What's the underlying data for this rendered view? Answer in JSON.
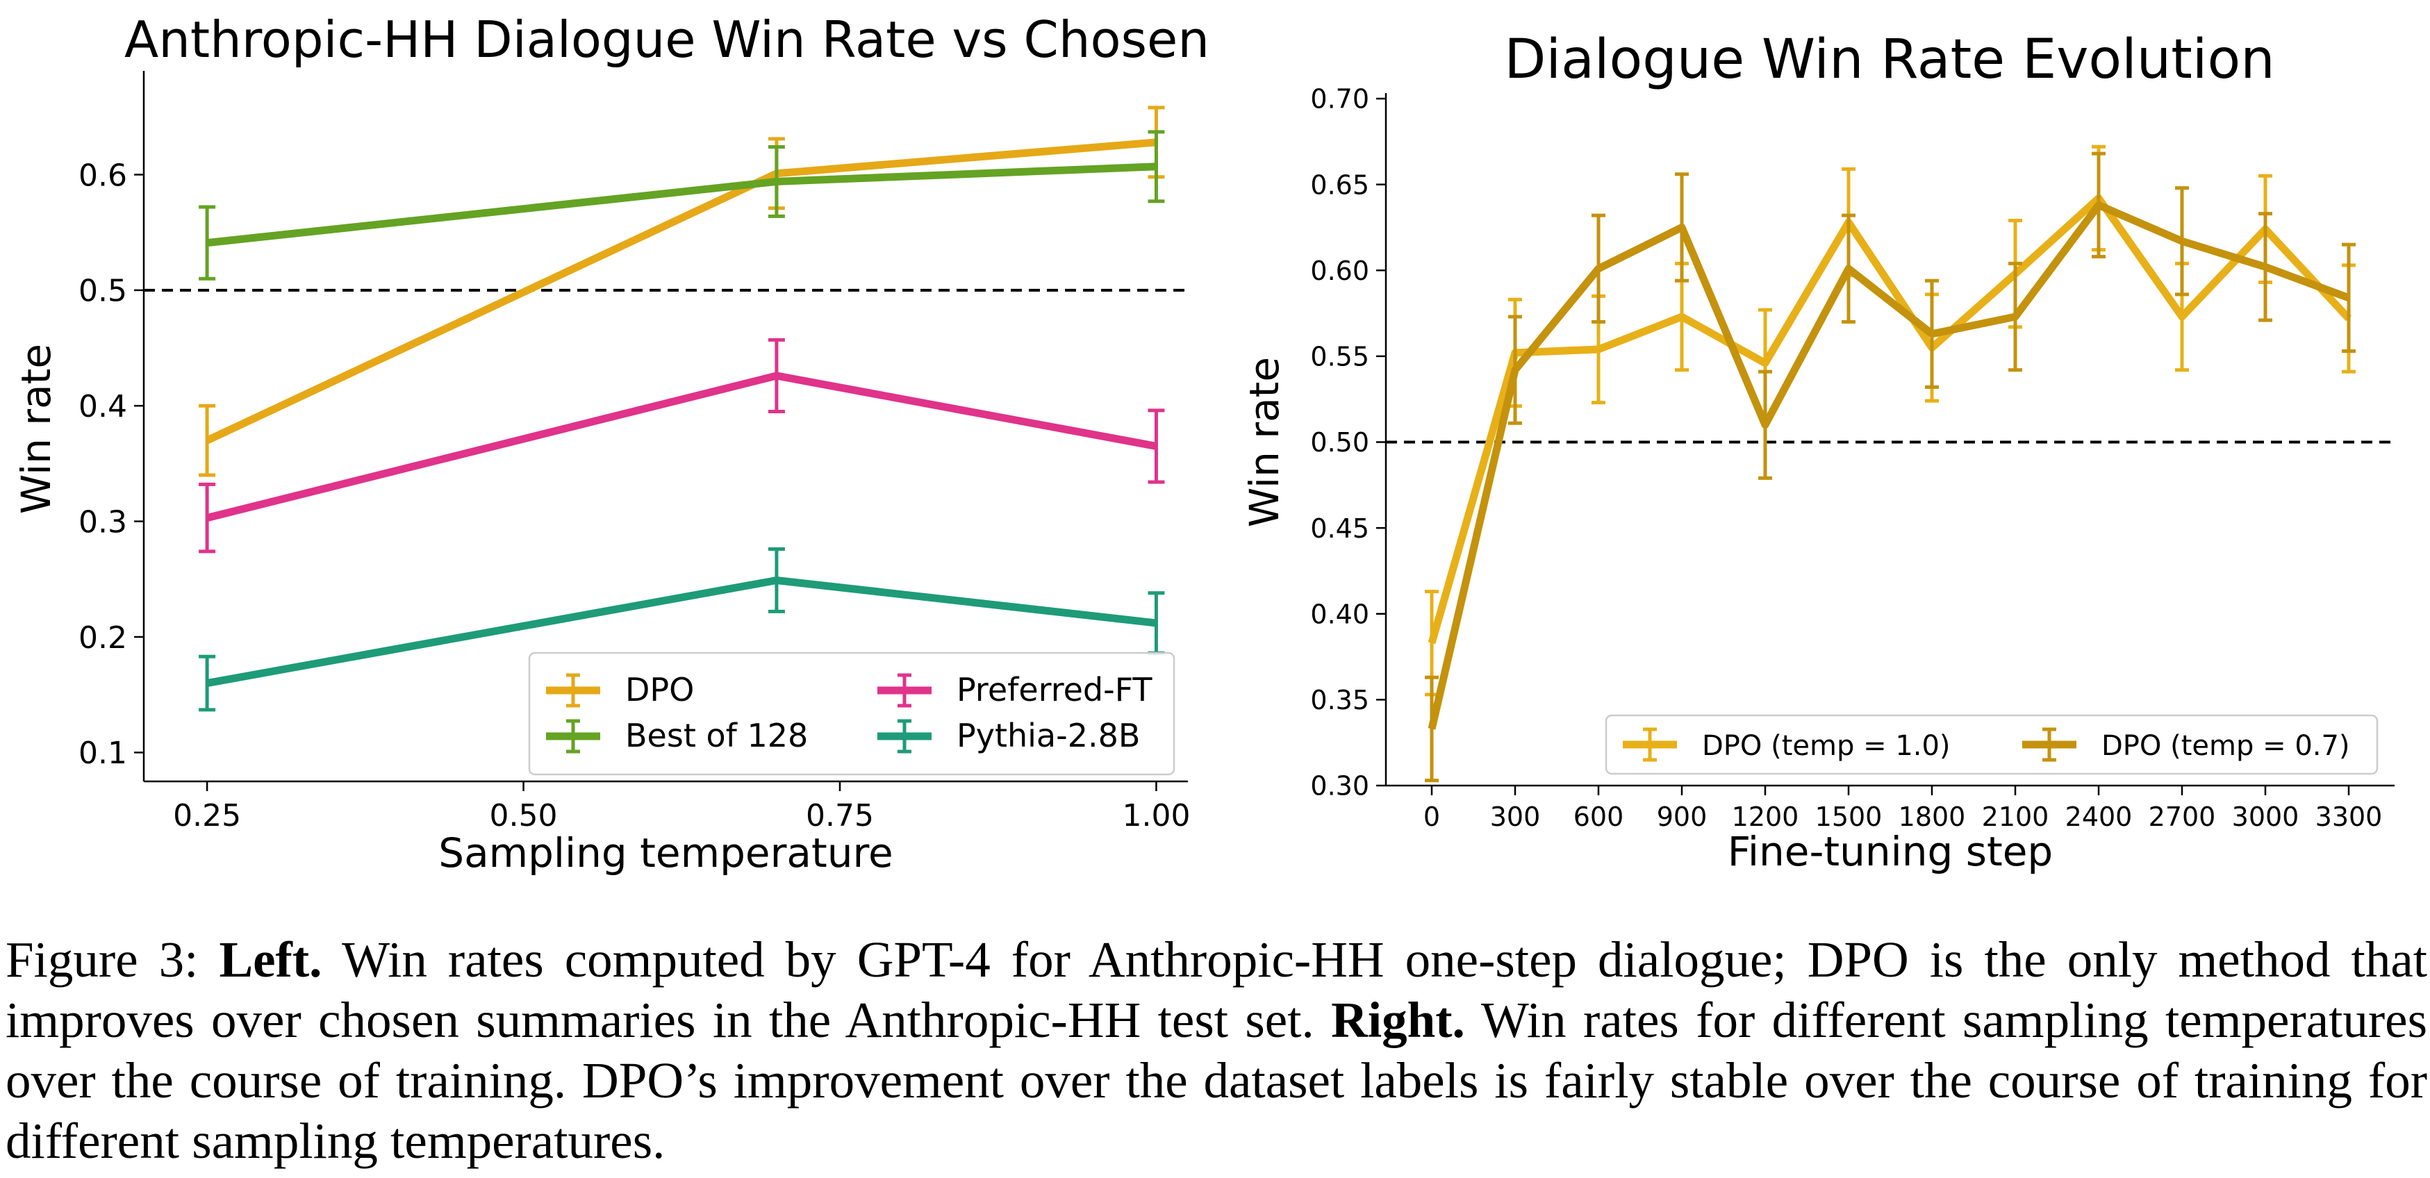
{
  "chart_data": [
    {
      "type": "line",
      "title": "Anthropic-HH Dialogue Win Rate vs Chosen",
      "xlabel": "Sampling temperature",
      "ylabel": "Win rate",
      "x": [
        0.25,
        0.7,
        1.0
      ],
      "xticks": [
        "0.25",
        "0.50",
        "0.75",
        "1.00"
      ],
      "xtick_values": [
        0.25,
        0.5,
        0.75,
        1.0
      ],
      "yticks": [
        "0.1",
        "0.2",
        "0.3",
        "0.4",
        "0.5",
        "0.6"
      ],
      "ytick_values": [
        0.1,
        0.2,
        0.3,
        0.4,
        0.5,
        0.6
      ],
      "xlim": [
        0.2,
        1.025
      ],
      "ylim": [
        0.075,
        0.685
      ],
      "reference_line": 0.5,
      "error_bars": true,
      "grid": false,
      "legend_position": "lower-right",
      "legend_columns": 2,
      "series": [
        {
          "name": "DPO",
          "color": "#E6A817",
          "values": [
            0.37,
            0.601,
            0.628
          ],
          "err": [
            0.03,
            0.03,
            0.03
          ]
        },
        {
          "name": "Preferred-FT",
          "color": "#E0338A",
          "values": [
            0.303,
            0.426,
            0.365
          ],
          "err": [
            0.029,
            0.031,
            0.031
          ]
        },
        {
          "name": "Best of 128",
          "color": "#64A323",
          "values": [
            0.541,
            0.594,
            0.607
          ],
          "err": [
            0.031,
            0.03,
            0.03
          ]
        },
        {
          "name": "Pythia-2.8B",
          "color": "#1E9B78",
          "values": [
            0.16,
            0.249,
            0.212
          ],
          "err": [
            0.023,
            0.027,
            0.026
          ]
        }
      ]
    },
    {
      "type": "line",
      "title": "Dialogue Win Rate Evolution",
      "xlabel": "Fine-tuning step",
      "ylabel": "Win rate",
      "x": [
        0,
        300,
        600,
        900,
        1200,
        1500,
        1800,
        2100,
        2400,
        2700,
        3000,
        3300
      ],
      "xticks": [
        "0",
        "300",
        "600",
        "900",
        "1200",
        "1500",
        "1800",
        "2100",
        "2400",
        "2700",
        "3000",
        "3300"
      ],
      "xtick_values": [
        0,
        300,
        600,
        900,
        1200,
        1500,
        1800,
        2100,
        2400,
        2700,
        3000,
        3300
      ],
      "yticks": [
        "0.30",
        "0.35",
        "0.40",
        "0.45",
        "0.50",
        "0.55",
        "0.60",
        "0.65",
        "0.70"
      ],
      "ytick_values": [
        0.3,
        0.35,
        0.4,
        0.45,
        0.5,
        0.55,
        0.6,
        0.65,
        0.7
      ],
      "xlim": [
        -165,
        3465
      ],
      "ylim": [
        0.3,
        0.7
      ],
      "reference_line": 0.5,
      "error_bars": true,
      "grid": false,
      "legend_position": "lower-right",
      "legend_columns": 2,
      "series": [
        {
          "name": "DPO (temp = 1.0)",
          "color": "#E8B018",
          "values": [
            0.383,
            0.552,
            0.554,
            0.573,
            0.546,
            0.628,
            0.555,
            0.598,
            0.642,
            0.573,
            0.624,
            0.572
          ],
          "err": [
            0.03,
            0.031,
            0.031,
            0.031,
            0.031,
            0.031,
            0.031,
            0.031,
            0.03,
            0.031,
            0.031,
            0.031
          ]
        },
        {
          "name": "DPO (temp = 0.7)",
          "color": "#C4920D",
          "values": [
            0.333,
            0.542,
            0.601,
            0.625,
            0.51,
            0.601,
            0.563,
            0.573,
            0.638,
            0.617,
            0.602,
            0.584
          ],
          "err": [
            0.03,
            0.031,
            0.031,
            0.031,
            0.031,
            0.031,
            0.031,
            0.031,
            0.03,
            0.031,
            0.031,
            0.031
          ]
        }
      ]
    }
  ],
  "caption": {
    "prefix": "Figure 3: ",
    "left_bold": "Left.",
    "left_text": " Win rates computed by GPT-4 for Anthropic-HH one-step dialogue; DPO is the only method that improves over chosen summaries in the Anthropic-HH test set. ",
    "right_bold": "Right.",
    "right_text": " Win rates for different sampling temperatures over the course of training. DPO’s improvement over the dataset labels is fairly stable over the course of training for different sampling temperatures."
  }
}
